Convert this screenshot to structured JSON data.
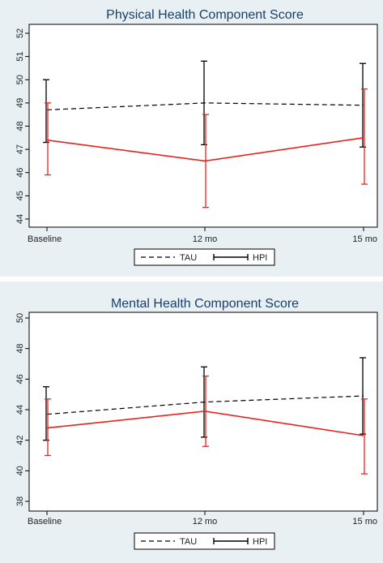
{
  "chart_data": [
    {
      "type": "line",
      "title": "Physical Health Component Score",
      "categories": [
        "Baseline",
        "12 mo",
        "15 mo"
      ],
      "ylim": [
        44,
        52
      ],
      "yticks": [
        44,
        45,
        46,
        47,
        48,
        49,
        50,
        51,
        52
      ],
      "grid": false,
      "legend_placement": "bottom",
      "series": [
        {
          "name": "TAU",
          "style": "dashed",
          "color": "#000000",
          "values": [
            48.7,
            49.0,
            48.9
          ],
          "ci_low": [
            47.3,
            47.2,
            47.1
          ],
          "ci_high": [
            50.0,
            50.8,
            50.7
          ]
        },
        {
          "name": "HPI",
          "style": "solid",
          "color": "#e8231f",
          "values": [
            47.4,
            46.5,
            47.5
          ],
          "ci_low": [
            45.9,
            44.5,
            45.5
          ],
          "ci_high": [
            49.0,
            48.5,
            49.6
          ]
        }
      ]
    },
    {
      "type": "line",
      "title": "Mental Health Component Score",
      "categories": [
        "Baseline",
        "12 mo",
        "15 mo"
      ],
      "ylim": [
        38,
        50
      ],
      "yticks": [
        38,
        40,
        42,
        44,
        46,
        48,
        50
      ],
      "grid": false,
      "legend_placement": "bottom",
      "series": [
        {
          "name": "TAU",
          "style": "dashed",
          "color": "#000000",
          "values": [
            43.7,
            44.5,
            44.9
          ],
          "ci_low": [
            42.0,
            42.2,
            42.4
          ],
          "ci_high": [
            45.5,
            46.8,
            47.4
          ]
        },
        {
          "name": "HPI",
          "style": "solid",
          "color": "#e8231f",
          "values": [
            42.8,
            43.9,
            42.3
          ],
          "ci_low": [
            41.0,
            41.6,
            39.8
          ],
          "ci_high": [
            44.7,
            46.2,
            44.7
          ]
        }
      ]
    }
  ]
}
